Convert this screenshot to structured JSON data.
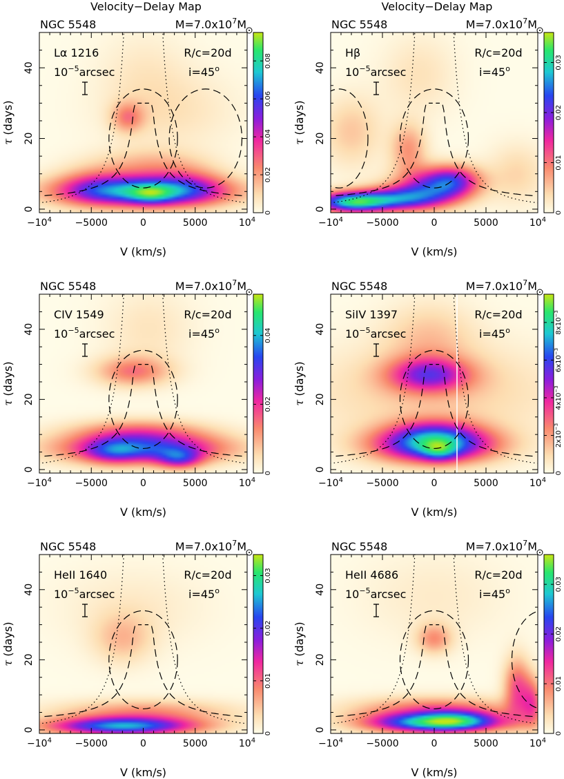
{
  "figure_title": "Velocity−Delay Map",
  "chart_data": [
    {
      "type": "heatmap",
      "title": "Velocity−Delay Map",
      "object": "NGC 5548",
      "mass": {
        "prefix": "M=7.0x10",
        "exp": "7",
        "unit": "M"
      },
      "line": {
        "pre": "Lα",
        "wave": "1216"
      },
      "scale": {
        "base": "10",
        "exp": "−5",
        "unit": "arcsec"
      },
      "rc": "R/c=20d",
      "incl": {
        "text": "i=45",
        "deg": "o"
      },
      "xlabel": "V (km/s)",
      "ylabel": "days",
      "ylabel_sym": "τ",
      "xlim": [
        -10000,
        10000
      ],
      "ylim": [
        -1,
        50
      ],
      "xticks": [
        {
          "v": -10000,
          "b": "−10",
          "e": "4"
        },
        {
          "v": -5000,
          "t": "−5000"
        },
        {
          "v": 0,
          "t": "0"
        },
        {
          "v": 5000,
          "t": "5000"
        },
        {
          "v": 10000,
          "b": "10",
          "e": "4"
        }
      ],
      "yticks": [
        {
          "v": 0,
          "t": "0"
        },
        {
          "v": 20,
          "t": "20"
        },
        {
          "v": 40,
          "t": "40"
        }
      ],
      "colorbar": {
        "min": 0,
        "max": 0.095,
        "ticks": [
          {
            "v": 0,
            "t": "0"
          },
          {
            "v": 0.02,
            "t": "0.02"
          },
          {
            "v": 0.04,
            "t": "0.04"
          },
          {
            "v": 0.06,
            "t": "0.06"
          },
          {
            "v": 0.08,
            "t": "0.08"
          }
        ]
      },
      "blobs": [
        {
          "x": 0,
          "y": 5,
          "sx": 5500,
          "sy": 3.0,
          "a": 0.07
        },
        {
          "x": 700,
          "y": 4,
          "sx": 1500,
          "sy": 2.0,
          "a": 0.02
        },
        {
          "x": -5000,
          "y": 7,
          "sx": 2500,
          "sy": 4.0,
          "a": 0.015
        },
        {
          "x": 4500,
          "y": 7,
          "sx": 2500,
          "sy": 4.0,
          "a": 0.015
        },
        {
          "x": -1500,
          "y": 26,
          "sx": 1100,
          "sy": 3.0,
          "a": 0.022
        },
        {
          "x": 2500,
          "y": 28,
          "sx": 4500,
          "sy": 8.0,
          "a": 0.008
        },
        {
          "x": 500,
          "y": 12,
          "sx": 3500,
          "sy": 3.5,
          "a": 0.016
        },
        {
          "x": 0,
          "y": 40,
          "sx": 3000,
          "sy": 8.0,
          "a": 0.005
        }
      ],
      "extra_ellipse": {
        "cx": 6000,
        "rx": 3500
      }
    },
    {
      "type": "heatmap",
      "title": "Velocity−Delay Map",
      "object": "NGC 5548",
      "mass": {
        "prefix": "M=7.0x10",
        "exp": "7",
        "unit": "M"
      },
      "line": {
        "pre": "Hβ",
        "wave": ""
      },
      "scale": {
        "base": "10",
        "exp": "−5",
        "unit": "arcsec"
      },
      "rc": "R/c=20d",
      "incl": {
        "text": "i=45",
        "deg": "o"
      },
      "xlabel": "V (km/s)",
      "ylabel": "days",
      "ylabel_sym": "τ",
      "xlim": [
        -10000,
        10000
      ],
      "ylim": [
        -1,
        50
      ],
      "xticks": [
        {
          "v": -10000,
          "b": "−10",
          "e": "4"
        },
        {
          "v": -5000,
          "t": "−5000"
        },
        {
          "v": 0,
          "t": "0"
        },
        {
          "v": 5000,
          "t": "5000"
        },
        {
          "v": 10000,
          "b": "10",
          "e": "4"
        }
      ],
      "yticks": [
        {
          "v": 0,
          "t": "0"
        },
        {
          "v": 20,
          "t": "20"
        },
        {
          "v": 40,
          "t": "40"
        }
      ],
      "colorbar": {
        "min": 0,
        "max": 0.036,
        "ticks": [
          {
            "v": 0,
            "t": "0"
          },
          {
            "v": 0.01,
            "t": "0.01"
          },
          {
            "v": 0.02,
            "t": "0.02"
          },
          {
            "v": 0.03,
            "t": "0.03"
          }
        ]
      },
      "blobs": [
        {
          "x": -8000,
          "y": 2,
          "sx": 2500,
          "sy": 2.0,
          "a": 0.028
        },
        {
          "x": -3000,
          "y": 3,
          "sx": 3000,
          "sy": 2.5,
          "a": 0.02
        },
        {
          "x": 0,
          "y": 7,
          "sx": 2500,
          "sy": 3.5,
          "a": 0.015
        },
        {
          "x": 2000,
          "y": 8,
          "sx": 1800,
          "sy": 3.0,
          "a": 0.012
        },
        {
          "x": -2500,
          "y": 17,
          "sx": 1200,
          "sy": 5.0,
          "a": 0.008
        },
        {
          "x": -8000,
          "y": 22,
          "sx": 2000,
          "sy": 7.0,
          "a": 0.005
        },
        {
          "x": -1500,
          "y": 38,
          "sx": 2500,
          "sy": 8.0,
          "a": 0.003
        },
        {
          "x": 8000,
          "y": 10,
          "sx": 2000,
          "sy": 6.0,
          "a": 0.004
        }
      ],
      "extra_ellipse": {
        "cx": -9200,
        "rx": 2800
      }
    },
    {
      "type": "heatmap",
      "title": "",
      "object": "NGC 5548",
      "mass": {
        "prefix": "M=7.0x10",
        "exp": "7",
        "unit": "M"
      },
      "line": {
        "pre": "CIV",
        "wave": "1549"
      },
      "scale": {
        "base": "10",
        "exp": "−5",
        "unit": "arcsec"
      },
      "rc": "R/c=20d",
      "incl": {
        "text": "i=45",
        "deg": "o"
      },
      "xlabel": "V (km/s)",
      "ylabel": "days",
      "ylabel_sym": "τ",
      "xlim": [
        -10000,
        10000
      ],
      "ylim": [
        -1,
        50
      ],
      "xticks": [
        {
          "v": -10000,
          "b": "−10",
          "e": "4"
        },
        {
          "v": -5000,
          "t": "−5000"
        },
        {
          "v": 0,
          "t": "0"
        },
        {
          "v": 5000,
          "t": "5000"
        },
        {
          "v": 10000,
          "b": "10",
          "e": "4"
        }
      ],
      "yticks": [
        {
          "v": 0,
          "t": "0"
        },
        {
          "v": 20,
          "t": "20"
        },
        {
          "v": 40,
          "t": "40"
        }
      ],
      "colorbar": {
        "min": 0,
        "max": 0.052,
        "ticks": [
          {
            "v": 0,
            "t": "0"
          },
          {
            "v": 0.02,
            "t": "0.02"
          },
          {
            "v": 0.04,
            "t": "0.04"
          }
        ]
      },
      "blobs": [
        {
          "x": 0,
          "y": 6,
          "sx": 5500,
          "sy": 3.0,
          "a": 0.032
        },
        {
          "x": 3500,
          "y": 3,
          "sx": 1500,
          "sy": 2.0,
          "a": 0.018
        },
        {
          "x": -3000,
          "y": 5,
          "sx": 1800,
          "sy": 2.5,
          "a": 0.01
        },
        {
          "x": -500,
          "y": 11,
          "sx": 4500,
          "sy": 2.5,
          "a": 0.012
        },
        {
          "x": -1000,
          "y": 28,
          "sx": 2500,
          "sy": 3.0,
          "a": 0.014
        },
        {
          "x": 500,
          "y": 40,
          "sx": 3000,
          "sy": 8.0,
          "a": 0.004
        }
      ]
    },
    {
      "type": "heatmap",
      "title": "",
      "object": "NGC 5548",
      "mass": {
        "prefix": "M=7.0x10",
        "exp": "7",
        "unit": "M"
      },
      "line": {
        "pre": "SiIV",
        "wave": "1397"
      },
      "scale": {
        "base": "10",
        "exp": "−5",
        "unit": "arcsec"
      },
      "rc": "R/c=20d",
      "incl": {
        "text": "i=45",
        "deg": "o"
      },
      "xlabel": "V (km/s)",
      "ylabel": "days",
      "ylabel_sym": "τ",
      "xlim": [
        -10000,
        10000
      ],
      "ylim": [
        -1,
        50
      ],
      "xticks": [
        {
          "v": -10000,
          "b": "−10",
          "e": "4"
        },
        {
          "v": -5000,
          "t": "−5000"
        },
        {
          "v": 0,
          "t": "0"
        },
        {
          "v": 5000,
          "t": "5000"
        },
        {
          "v": 10000,
          "b": "10",
          "e": "4"
        }
      ],
      "yticks": [
        {
          "v": 0,
          "t": "0"
        },
        {
          "v": 20,
          "t": "20"
        },
        {
          "v": 40,
          "t": "40"
        }
      ],
      "colorbar": {
        "min": 0,
        "max": 0.0095,
        "ticks": [
          {
            "v": 0,
            "t": "0"
          },
          {
            "v": 0.002,
            "b": "2x10",
            "e": "−3"
          },
          {
            "v": 0.004,
            "b": "4x10",
            "e": "−3"
          },
          {
            "v": 0.006,
            "b": "6x10",
            "e": "−3"
          },
          {
            "v": 0.008,
            "b": "8x10",
            "e": "−3"
          }
        ]
      },
      "blobs": [
        {
          "x": 0,
          "y": 7,
          "sx": 4000,
          "sy": 3.5,
          "a": 0.007
        },
        {
          "x": 500,
          "y": 5,
          "sx": 1200,
          "sy": 2.0,
          "a": 0.002
        },
        {
          "x": 0,
          "y": 11,
          "sx": 3000,
          "sy": 3.0,
          "a": 0.002
        },
        {
          "x": -500,
          "y": 27,
          "sx": 2800,
          "sy": 3.5,
          "a": 0.0042
        },
        {
          "x": 0,
          "y": 22,
          "sx": 9000,
          "sy": 10.0,
          "a": 0.0012
        },
        {
          "x": -500,
          "y": 38,
          "sx": 3000,
          "sy": 7.0,
          "a": 0.0012
        }
      ],
      "vline_x": 2200
    },
    {
      "type": "heatmap",
      "title": "",
      "object": "NGC 5548",
      "mass": {
        "prefix": "M=7.0x10",
        "exp": "7",
        "unit": "M"
      },
      "line": {
        "pre": "HeII",
        "wave": "1640"
      },
      "scale": {
        "base": "10",
        "exp": "−5",
        "unit": "arcsec"
      },
      "rc": "R/c=20d",
      "incl": {
        "text": "i=45",
        "deg": "o"
      },
      "xlabel": "V (km/s)",
      "ylabel": "days",
      "ylabel_sym": "τ",
      "xlim": [
        -10000,
        10000
      ],
      "ylim": [
        -1,
        50
      ],
      "xticks": [
        {
          "v": -10000,
          "b": "−10",
          "e": "4"
        },
        {
          "v": -5000,
          "t": "−5000"
        },
        {
          "v": 0,
          "t": "0"
        },
        {
          "v": 5000,
          "t": "5000"
        },
        {
          "v": 10000,
          "b": "10",
          "e": "4"
        }
      ],
      "yticks": [
        {
          "v": 0,
          "t": "0"
        },
        {
          "v": 20,
          "t": "20"
        },
        {
          "v": 40,
          "t": "40"
        }
      ],
      "colorbar": {
        "min": 0,
        "max": 0.034,
        "ticks": [
          {
            "v": 0,
            "t": "0"
          },
          {
            "v": 0.01,
            "t": "0.01"
          },
          {
            "v": 0.02,
            "t": "0.02"
          },
          {
            "v": 0.03,
            "t": "0.03"
          }
        ]
      },
      "blobs": [
        {
          "x": -2000,
          "y": 1,
          "sx": 5000,
          "sy": 1.8,
          "a": 0.024
        },
        {
          "x": 0,
          "y": 5,
          "sx": 6000,
          "sy": 2.5,
          "a": 0.008
        },
        {
          "x": -2000,
          "y": 26,
          "sx": 2000,
          "sy": 5.0,
          "a": 0.005
        },
        {
          "x": -1000,
          "y": 35,
          "sx": 5000,
          "sy": 8.0,
          "a": 0.002
        }
      ]
    },
    {
      "type": "heatmap",
      "title": "",
      "object": "NGC 5548",
      "mass": {
        "prefix": "M=7.0x10",
        "exp": "7",
        "unit": "M"
      },
      "line": {
        "pre": "HeII",
        "wave": "4686"
      },
      "scale": {
        "base": "10",
        "exp": "−5",
        "unit": "arcsec"
      },
      "rc": "R/c=20d",
      "incl": {
        "text": "i=45",
        "deg": "o"
      },
      "xlabel": "V (km/s)",
      "ylabel": "days",
      "ylabel_sym": "τ",
      "xlim": [
        -10000,
        10000
      ],
      "ylim": [
        -1,
        50
      ],
      "xticks": [
        {
          "v": -10000,
          "b": "−10",
          "e": "4"
        },
        {
          "v": -5000,
          "t": "−5000"
        },
        {
          "v": 0,
          "t": "0"
        },
        {
          "v": 5000,
          "t": "5000"
        },
        {
          "v": 10000,
          "b": "10",
          "e": "4"
        }
      ],
      "yticks": [
        {
          "v": 0,
          "t": "0"
        },
        {
          "v": 20,
          "t": "20"
        },
        {
          "v": 40,
          "t": "40"
        }
      ],
      "colorbar": {
        "min": 0,
        "max": 0.036,
        "ticks": [
          {
            "v": 0,
            "t": "0"
          },
          {
            "v": 0.01,
            "t": "0.01"
          },
          {
            "v": 0.02,
            "t": "0.02"
          },
          {
            "v": 0.03,
            "t": "0.03"
          }
        ]
      },
      "blobs": [
        {
          "x": 0,
          "y": 2,
          "sx": 4500,
          "sy": 2.0,
          "a": 0.028
        },
        {
          "x": 2500,
          "y": 3,
          "sx": 2500,
          "sy": 2.0,
          "a": 0.008
        },
        {
          "x": 0,
          "y": 6,
          "sx": 5500,
          "sy": 2.5,
          "a": 0.01
        },
        {
          "x": 8000,
          "y": 12,
          "sx": 900,
          "sy": 6.0,
          "a": 0.012
        },
        {
          "x": 9500,
          "y": 8,
          "sx": 700,
          "sy": 5.0,
          "a": 0.01
        },
        {
          "x": 0,
          "y": 26,
          "sx": 1200,
          "sy": 3.0,
          "a": 0.008
        },
        {
          "x": 0,
          "y": 38,
          "sx": 5000,
          "sy": 9.0,
          "a": 0.002
        }
      ],
      "extra_ellipse": {
        "cx": 10500,
        "rx": 3000
      }
    }
  ]
}
